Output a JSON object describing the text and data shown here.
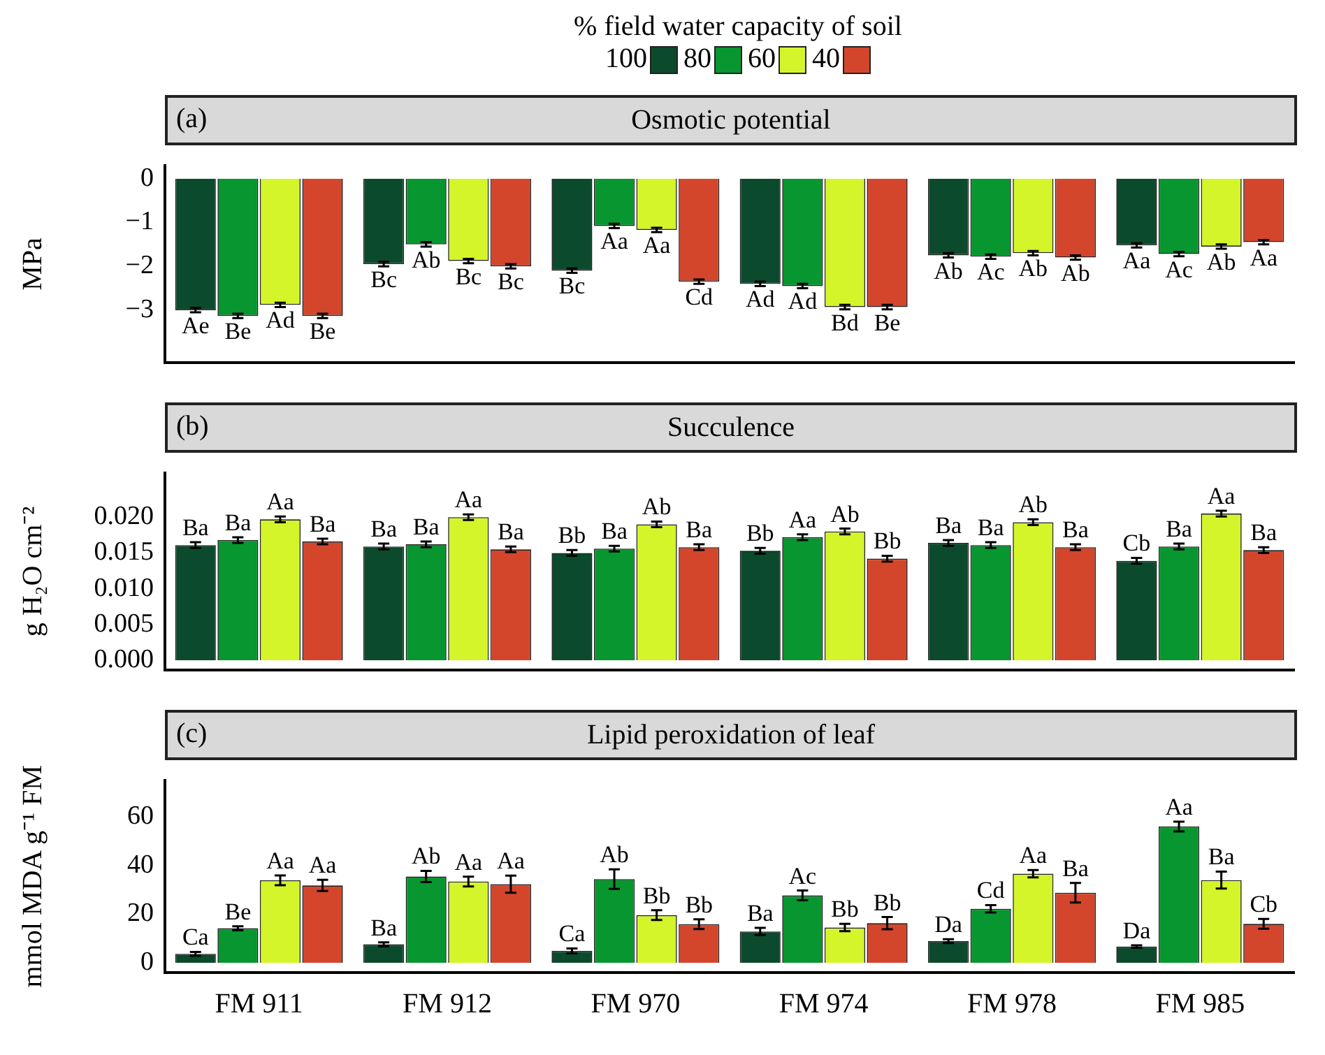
{
  "chart_data": [
    {
      "type": "bar",
      "title": "Osmotic potential",
      "annotations": [
        "(a)"
      ],
      "ylabel": "MPa",
      "legend_title": "% field water capacity of soil",
      "legend": "top",
      "grid": false,
      "tick_labels": "y",
      "categories": [
        null,
        null,
        null,
        null,
        null,
        null
      ],
      "ylim": [
        -4.2,
        0.3
      ],
      "yticks": [
        {
          "value": 0,
          "label": "0"
        },
        {
          "value": -1,
          "label": "−1"
        },
        {
          "value": -2,
          "label": "−2"
        },
        {
          "value": -3,
          "label": "−3"
        }
      ],
      "series": [
        {
          "name": "100",
          "color": "#0b4a2c",
          "values": [
            -3.0,
            -1.95,
            -2.1,
            -2.4,
            -1.75,
            -1.52
          ],
          "errors": [
            0.05,
            0.05,
            0.05,
            0.05,
            0.05,
            0.05
          ],
          "value_labels": [
            "Ae",
            "Bc",
            "Bc",
            "Ad",
            "Ab",
            "Aa"
          ]
        },
        {
          "name": "80",
          "color": "#07962f",
          "values": [
            -3.13,
            -1.5,
            -1.08,
            -2.45,
            -1.78,
            -1.72
          ],
          "errors": [
            0.05,
            0.05,
            0.05,
            0.05,
            0.05,
            0.05
          ],
          "value_labels": [
            "Be",
            "Ab",
            "Aa",
            "Ad",
            "Ac",
            "Ac"
          ]
        },
        {
          "name": "60",
          "color": "#d4f52a",
          "values": [
            -2.88,
            -1.88,
            -1.17,
            -2.93,
            -1.7,
            -1.55
          ],
          "errors": [
            0.05,
            0.05,
            0.05,
            0.05,
            0.05,
            0.05
          ],
          "value_labels": [
            "Ad",
            "Bc",
            "Aa",
            "Bd",
            "Ab",
            "Ab"
          ]
        },
        {
          "name": "40",
          "color": "#d3462c",
          "values": [
            -3.13,
            -2.0,
            -2.35,
            -2.93,
            -1.8,
            -1.45
          ],
          "errors": [
            0.05,
            0.05,
            0.05,
            0.05,
            0.05,
            0.05
          ],
          "value_labels": [
            "Be",
            "Bc",
            "Cd",
            "Be",
            "Ab",
            "Aa"
          ]
        }
      ]
    },
    {
      "type": "bar",
      "title": "Succulence",
      "annotations": [
        "(b)"
      ],
      "ylabel": "g H₂O cm⁻²",
      "grid": false,
      "tick_labels": "y",
      "categories": [
        null,
        null,
        null,
        null,
        null,
        null
      ],
      "ylim": [
        -0.0014,
        0.0262
      ],
      "yticks": [
        {
          "value": 0,
          "label": "0.000"
        },
        {
          "value": 0.005,
          "label": "0.005"
        },
        {
          "value": 0.01,
          "label": "0.010"
        },
        {
          "value": 0.015,
          "label": "0.015"
        },
        {
          "value": 0.02,
          "label": "0.020"
        }
      ],
      "series": [
        {
          "name": "100",
          "color": "#0b4a2c",
          "values": [
            0.0161,
            0.0159,
            0.015,
            0.0153,
            0.0164,
            0.0139
          ],
          "errors": [
            0.0004,
            0.0004,
            0.0004,
            0.0004,
            0.0004,
            0.0004
          ],
          "value_labels": [
            "Ba",
            "Ba",
            "Bb",
            "Bb",
            "Ba",
            "Cb"
          ]
        },
        {
          "name": "80",
          "color": "#07962f",
          "values": [
            0.0168,
            0.0162,
            0.0156,
            0.0172,
            0.0161,
            0.0159
          ],
          "errors": [
            0.0004,
            0.0004,
            0.0004,
            0.0004,
            0.0004,
            0.0004
          ],
          "value_labels": [
            "Ba",
            "Ba",
            "Ba",
            "Aa",
            "Ba",
            "Ba"
          ]
        },
        {
          "name": "60",
          "color": "#d4f52a",
          "values": [
            0.0197,
            0.02,
            0.019,
            0.018,
            0.0193,
            0.0205
          ],
          "errors": [
            0.0004,
            0.0004,
            0.0004,
            0.0004,
            0.0004,
            0.0004
          ],
          "value_labels": [
            "Aa",
            "Aa",
            "Ab",
            "Ab",
            "Ab",
            "Aa"
          ]
        },
        {
          "name": "40",
          "color": "#d3462c",
          "values": [
            0.0166,
            0.0155,
            0.0158,
            0.0142,
            0.0158,
            0.0154
          ],
          "errors": [
            0.0004,
            0.0004,
            0.0004,
            0.0004,
            0.0004,
            0.0004
          ],
          "value_labels": [
            "Ba",
            "Ba",
            "Ba",
            "Bb",
            "Ba",
            "Ba"
          ]
        }
      ]
    },
    {
      "type": "bar",
      "title": "Lipid peroxidation of leaf",
      "annotations": [
        "(c)"
      ],
      "ylabel": "mmol MDA g⁻¹ FM",
      "grid": false,
      "categories": [
        "FM 911",
        "FM 912",
        "FM 970",
        "FM 974",
        "FM 978",
        "FM 985"
      ],
      "ylim": [
        -4,
        75
      ],
      "yticks": [
        0,
        20,
        40,
        60
      ],
      "series": [
        {
          "name": "100",
          "color": "#0b4a2c",
          "values": [
            3.7,
            7.6,
            4.9,
            12.9,
            8.9,
            6.7
          ],
          "errors": [
            0.8,
            0.8,
            1,
            1.5,
            0.8,
            0.5
          ],
          "value_labels": [
            "Ca",
            "Ba",
            "Ca",
            "Ba",
            "Da",
            "Da"
          ]
        },
        {
          "name": "80",
          "color": "#07962f",
          "values": [
            14.2,
            35.5,
            34.4,
            27.7,
            22.2,
            56.0
          ],
          "errors": [
            0.8,
            2.3,
            4,
            2,
            1.5,
            2
          ],
          "value_labels": [
            "Be",
            "Ab",
            "Ab",
            "Ac",
            "Cd",
            "Aa"
          ]
        },
        {
          "name": "60",
          "color": "#d4f52a",
          "values": [
            33.9,
            33.4,
            19.6,
            14.5,
            36.6,
            34.0
          ],
          "errors": [
            2,
            2,
            2,
            1.5,
            1.5,
            3.5
          ],
          "value_labels": [
            "Aa",
            "Aa",
            "Bb",
            "Bb",
            "Aa",
            "Ba"
          ]
        },
        {
          "name": "40",
          "color": "#d3462c",
          "values": [
            31.8,
            32.3,
            15.9,
            16.3,
            28.8,
            16.0
          ],
          "errors": [
            2.3,
            3.5,
            2,
            2.5,
            4,
            2
          ],
          "value_labels": [
            "Aa",
            "Aa",
            "Bb",
            "Bb",
            "Ba",
            "Cb"
          ]
        }
      ]
    }
  ]
}
